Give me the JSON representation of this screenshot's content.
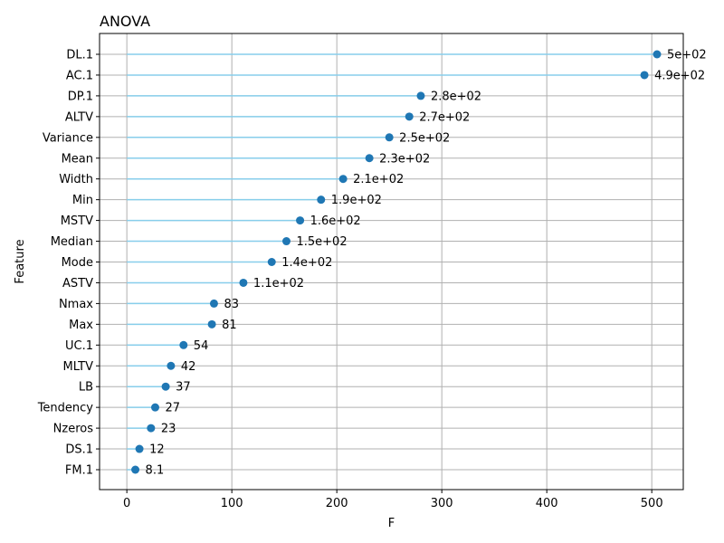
{
  "chart_data": {
    "type": "lollipop",
    "title": "ANOVA",
    "xlabel": "F",
    "ylabel": "Feature",
    "xlim": [
      -26,
      530
    ],
    "xticks": [
      0,
      100,
      200,
      300,
      400,
      500
    ],
    "grid": true,
    "colors": {
      "stem": "#87ceeb",
      "marker": "#1f77b4",
      "grid": "#b0b0b0"
    },
    "categories": [
      "DL.1",
      "AC.1",
      "DP.1",
      "ALTV",
      "Variance",
      "Mean",
      "Width",
      "Min",
      "MSTV",
      "Median",
      "Mode",
      "ASTV",
      "Nmax",
      "Max",
      "UC.1",
      "MLTV",
      "LB",
      "Tendency",
      "Nzeros",
      "DS.1",
      "FM.1"
    ],
    "values": [
      505,
      493,
      280,
      269,
      250,
      231,
      206,
      185,
      165,
      152,
      138,
      111,
      83,
      81,
      54,
      42,
      37,
      27,
      23,
      12,
      8.1
    ],
    "labels": [
      "5e+02",
      "4.9e+02",
      "2.8e+02",
      "2.7e+02",
      "2.5e+02",
      "2.3e+02",
      "2.1e+02",
      "1.9e+02",
      "1.6e+02",
      "1.5e+02",
      "1.4e+02",
      "1.1e+02",
      "83",
      "81",
      "54",
      "42",
      "37",
      "27",
      "23",
      "12",
      "8.1"
    ]
  }
}
